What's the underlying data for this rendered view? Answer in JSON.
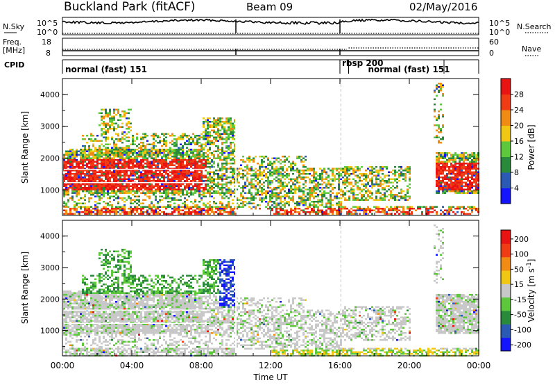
{
  "header": {
    "station": "Buckland Park (fitACF)",
    "beam": "Beam 09",
    "date": "02/May/2016"
  },
  "params": {
    "nsky_label": "N.Sky",
    "nsky_ticks": [
      "10^5",
      "10^0"
    ],
    "nsearch_label": "N.Search",
    "nsearch_ticks": [
      "10^5",
      "10^0"
    ],
    "freq_label": "Freq.",
    "freq_unit": "[MHz]",
    "freq_ticks": [
      "18",
      "8"
    ],
    "nave_label": "Nave",
    "nave_ticks": [
      "60",
      "0"
    ],
    "cpid_label": "CPID",
    "cpid_segments": [
      {
        "label": "normal (fast) 151",
        "start": "00:00",
        "end": "16:00"
      },
      {
        "label": "rbsp 200",
        "start": "16:00",
        "end": "16:30"
      },
      {
        "label": "normal (fast) 151",
        "start": "16:30",
        "end": "22:00"
      }
    ]
  },
  "chart_data": [
    {
      "type": "heatmap",
      "name": "power",
      "ylabel": "Slant Range [km]",
      "yticks": [
        "1000",
        "2000",
        "3000",
        "4000"
      ],
      "ylim": [
        200,
        4500
      ],
      "colorbar_label": "Power [dB]",
      "colorbar_ticks": [
        "4",
        "8",
        "12",
        "16",
        "20",
        "24",
        "28"
      ],
      "colorbar_colors": [
        "#1414ff",
        "#2a5ab4",
        "#2a8a3c",
        "#5ec83c",
        "#f0c814",
        "#f08c14",
        "#f03c14",
        "#e81414"
      ]
    },
    {
      "type": "heatmap",
      "name": "velocity",
      "ylabel": "Slant Range [km]",
      "yticks": [
        "1000",
        "2000",
        "3000",
        "4000"
      ],
      "ylim": [
        200,
        4500
      ],
      "colorbar_label": "Velocity [m s",
      "colorbar_label_sup": "-1",
      "colorbar_ticks": [
        "200",
        "100",
        "50",
        "15",
        "-15",
        "-50",
        "-100",
        "-200"
      ],
      "colorbar_colors": [
        "#1414ff",
        "#2a5ab4",
        "#2a8a3c",
        "#5ec83c",
        "#c8c8c8",
        "#f0c814",
        "#f08c14",
        "#f03c14",
        "#e81414"
      ]
    }
  ],
  "xaxis": {
    "label": "Time UT",
    "ticks": [
      "00:00",
      "04:00",
      "08:00",
      "12:00",
      "16:00",
      "20:00",
      "00:00"
    ]
  }
}
